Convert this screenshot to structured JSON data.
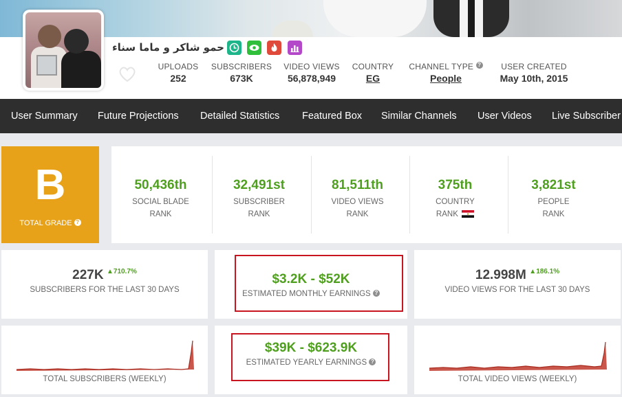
{
  "channel": {
    "name": "حمو شاكر و ماما سناء",
    "icons": [
      "clock-icon",
      "eye-icon",
      "flame-icon",
      "bar-chart-icon"
    ],
    "icon_colors": [
      "#1fb58a",
      "#2fbf3b",
      "#e04a3a",
      "#b348c8"
    ]
  },
  "header_stats": [
    {
      "label": "UPLOADS",
      "value": "252"
    },
    {
      "label": "SUBSCRIBERS",
      "value": "673K"
    },
    {
      "label": "VIDEO VIEWS",
      "value": "56,878,949"
    },
    {
      "label": "COUNTRY",
      "value": "EG"
    },
    {
      "label": "CHANNEL TYPE",
      "value": "People"
    },
    {
      "label": "USER CREATED",
      "value": "May 10th, 2015"
    }
  ],
  "nav": [
    "User Summary",
    "Future Projections",
    "Detailed Statistics",
    "Featured Box",
    "Similar Channels",
    "User Videos",
    "Live Subscriber"
  ],
  "grade": {
    "letter": "B",
    "label": "TOTAL GRADE",
    "color": "#e8a21a"
  },
  "ranks": [
    {
      "value": "50,436th",
      "line1": "SOCIAL BLADE",
      "line2": "RANK"
    },
    {
      "value": "32,491st",
      "line1": "SUBSCRIBER",
      "line2": "RANK"
    },
    {
      "value": "81,511th",
      "line1": "VIDEO VIEWS",
      "line2": "RANK"
    },
    {
      "value": "375th",
      "line1": "COUNTRY",
      "line2": "RANK"
    },
    {
      "value": "3,821st",
      "line1": "PEOPLE",
      "line2": "RANK"
    }
  ],
  "summary": {
    "subs30": {
      "value": "227K",
      "change": "710.7%",
      "label": "SUBSCRIBERS FOR THE LAST 30 DAYS"
    },
    "monthly": {
      "value": "$3.2K - $52K",
      "label": "ESTIMATED MONTHLY EARNINGS"
    },
    "views30": {
      "value": "12.998M",
      "change": "186.1%",
      "label": "VIDEO VIEWS FOR THE LAST 30 DAYS"
    },
    "subs_weekly": {
      "label": "TOTAL SUBSCRIBERS (WEEKLY)"
    },
    "yearly": {
      "value": "$39K - $623.9K",
      "label": "ESTIMATED YEARLY EARNINGS"
    },
    "views_weekly": {
      "label": "TOTAL VIDEO VIEWS (WEEKLY)"
    }
  },
  "colors": {
    "green": "#4f9f1f",
    "nav_bg": "#2e2e2e",
    "highlight": "#c8141e",
    "spark": "#c0392b"
  }
}
